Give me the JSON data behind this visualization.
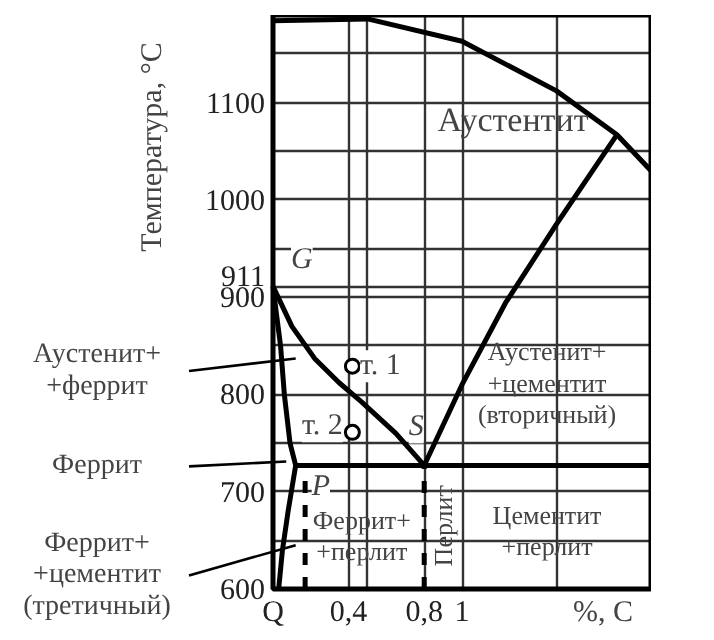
{
  "chart_data": {
    "type": "line",
    "ylabel": "Температура, °C",
    "xlabel": "%, C",
    "xlim": [
      0,
      2.0
    ],
    "ylim": [
      600,
      1190
    ],
    "xticks": [
      {
        "value": 0,
        "label": "Q"
      },
      {
        "value": 0.4,
        "label": "0,4"
      },
      {
        "value": 0.5,
        "label": null
      },
      {
        "value": 0.8,
        "label": "0,8"
      },
      1,
      {
        "value": 1.5,
        "label": null
      },
      {
        "value": 2.0,
        "label": null
      }
    ],
    "yticks": [
      600,
      {
        "value": 650,
        "label": null
      },
      700,
      {
        "value": 750,
        "label": null
      },
      800,
      {
        "value": 850,
        "label": null
      },
      900,
      911,
      {
        "value": 950,
        "label": null
      },
      1000,
      {
        "value": 1050,
        "label": null
      },
      1100,
      {
        "value": 1150,
        "label": null
      }
    ],
    "grid": true,
    "line_style": "solid",
    "series": [
      {
        "color": "#000000",
        "x": [
          0,
          0.1,
          0.22,
          0.35,
          0.47,
          0.65,
          0.8
        ],
        "values": [
          911,
          870,
          837,
          812,
          792,
          760,
          727
        ]
      },
      {
        "color": "#000000",
        "x": [
          0,
          0.02,
          0.04,
          0.06,
          0.09,
          0.12,
          0.08,
          0.05,
          0.03
        ],
        "values": [
          911,
          880,
          850,
          800,
          750,
          727,
          680,
          640,
          600
        ]
      },
      {
        "color": "#000000",
        "x": [
          0.12,
          2.0
        ],
        "values": [
          727,
          727
        ]
      },
      {
        "color": "#000000",
        "x": [
          0.8,
          1.0,
          1.23,
          1.5,
          1.82
        ],
        "values": [
          727,
          810,
          894,
          975,
          1067
        ]
      },
      {
        "color": "#000000",
        "x": [
          0,
          0.5,
          1.0,
          1.5,
          1.82,
          2.0
        ],
        "values": [
          1184,
          1186,
          1163,
          1112,
          1067,
          1030
        ]
      },
      {
        "color": "#000000",
        "line_style": "dashed",
        "x": [
          0.17,
          0.17
        ],
        "values": [
          600,
          715
        ]
      },
      {
        "color": "#000000",
        "line_style": "dashed",
        "x": [
          0.8,
          0.8
        ],
        "values": [
          600,
          727
        ]
      },
      {
        "type": "scatter",
        "marker": "circle",
        "color": "#000000",
        "x": [
          0.42,
          0.42
        ],
        "values": [
          829,
          761
        ]
      }
    ],
    "annotations": [
      "Аустенит+\n+феррит",
      "Феррит",
      "Феррит+\n+цементит\n(третичный)",
      "Аустентит",
      {
        "text": "G",
        "x": 0,
        "y": 911
      },
      {
        "text": "P",
        "x": 0.12,
        "y": 727
      },
      {
        "text": "S",
        "x": 0.8,
        "y": 727
      },
      {
        "text": "т. 1",
        "x": 0.42,
        "y": 829
      },
      {
        "text": "т. 2",
        "x": 0.42,
        "y": 761
      },
      "Аустенит+\n+цементит\n(вторичный)",
      "Перлит",
      "Феррит+\n+перлит",
      "Цементит\n+перлит"
    ]
  }
}
